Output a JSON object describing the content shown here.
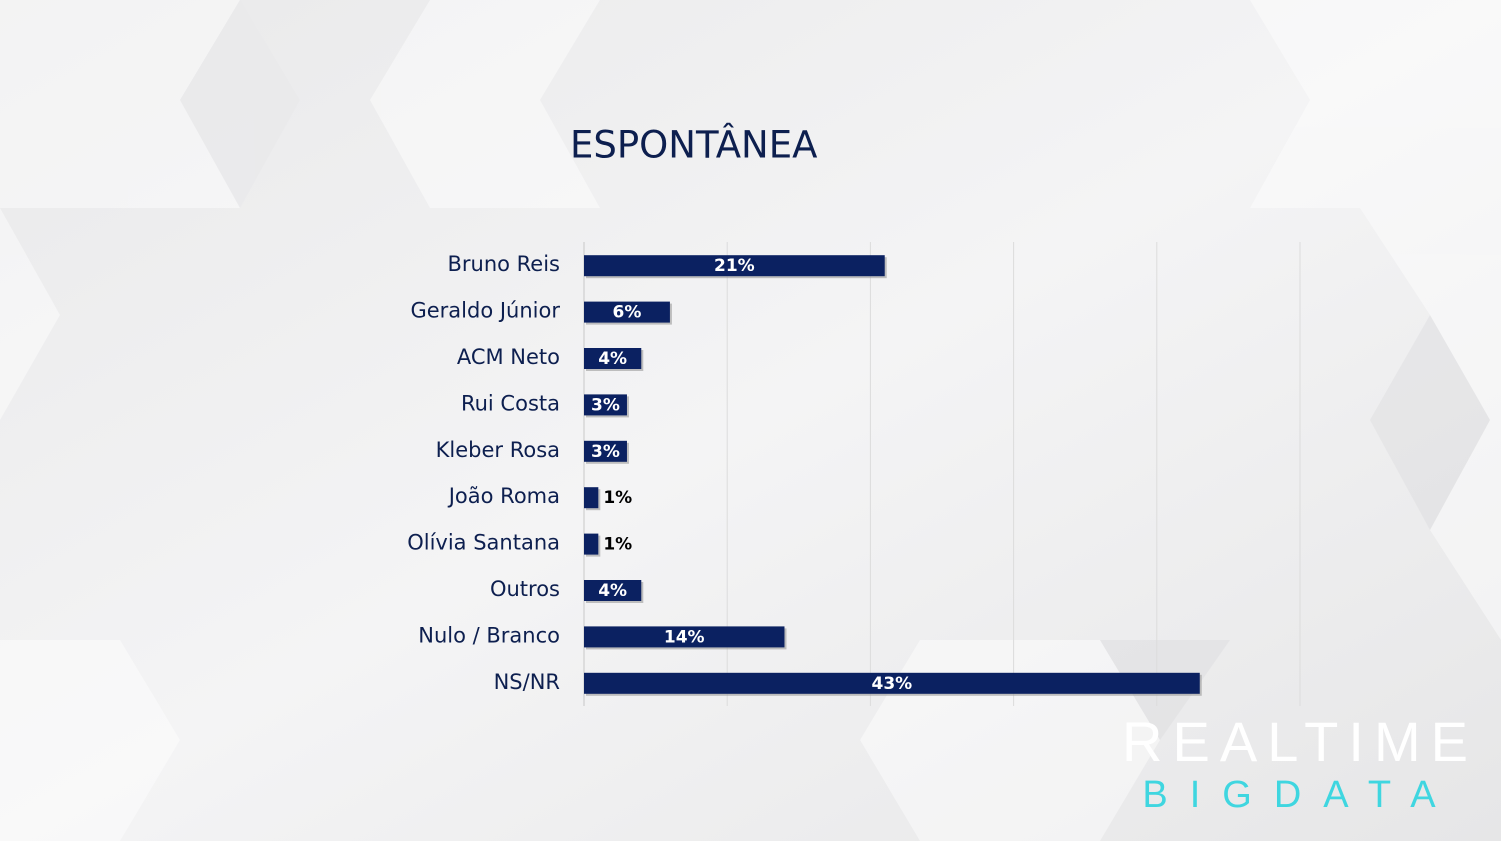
{
  "chart_data": {
    "type": "bar",
    "orientation": "horizontal",
    "title": "ESPONTÂNEA",
    "categories": [
      "Bruno Reis",
      "Geraldo Júnior",
      "ACM Neto",
      "Rui Costa",
      "Kleber Rosa",
      "João Roma",
      "Olívia Santana",
      "Outros",
      "Nulo / Branco",
      "NS/NR"
    ],
    "values": [
      21,
      6,
      4,
      3,
      3,
      1,
      1,
      4,
      14,
      43
    ],
    "value_labels": [
      "21%",
      "6%",
      "4%",
      "3%",
      "3%",
      "1%",
      "1%",
      "4%",
      "14%",
      "43%"
    ],
    "color": "#0b2161",
    "xlim": [
      0,
      50
    ],
    "xticks": [
      0,
      10,
      20,
      30,
      40,
      50
    ],
    "grid": true
  },
  "logo": {
    "line1": "REALTIME",
    "line2": "BIGDATA"
  }
}
